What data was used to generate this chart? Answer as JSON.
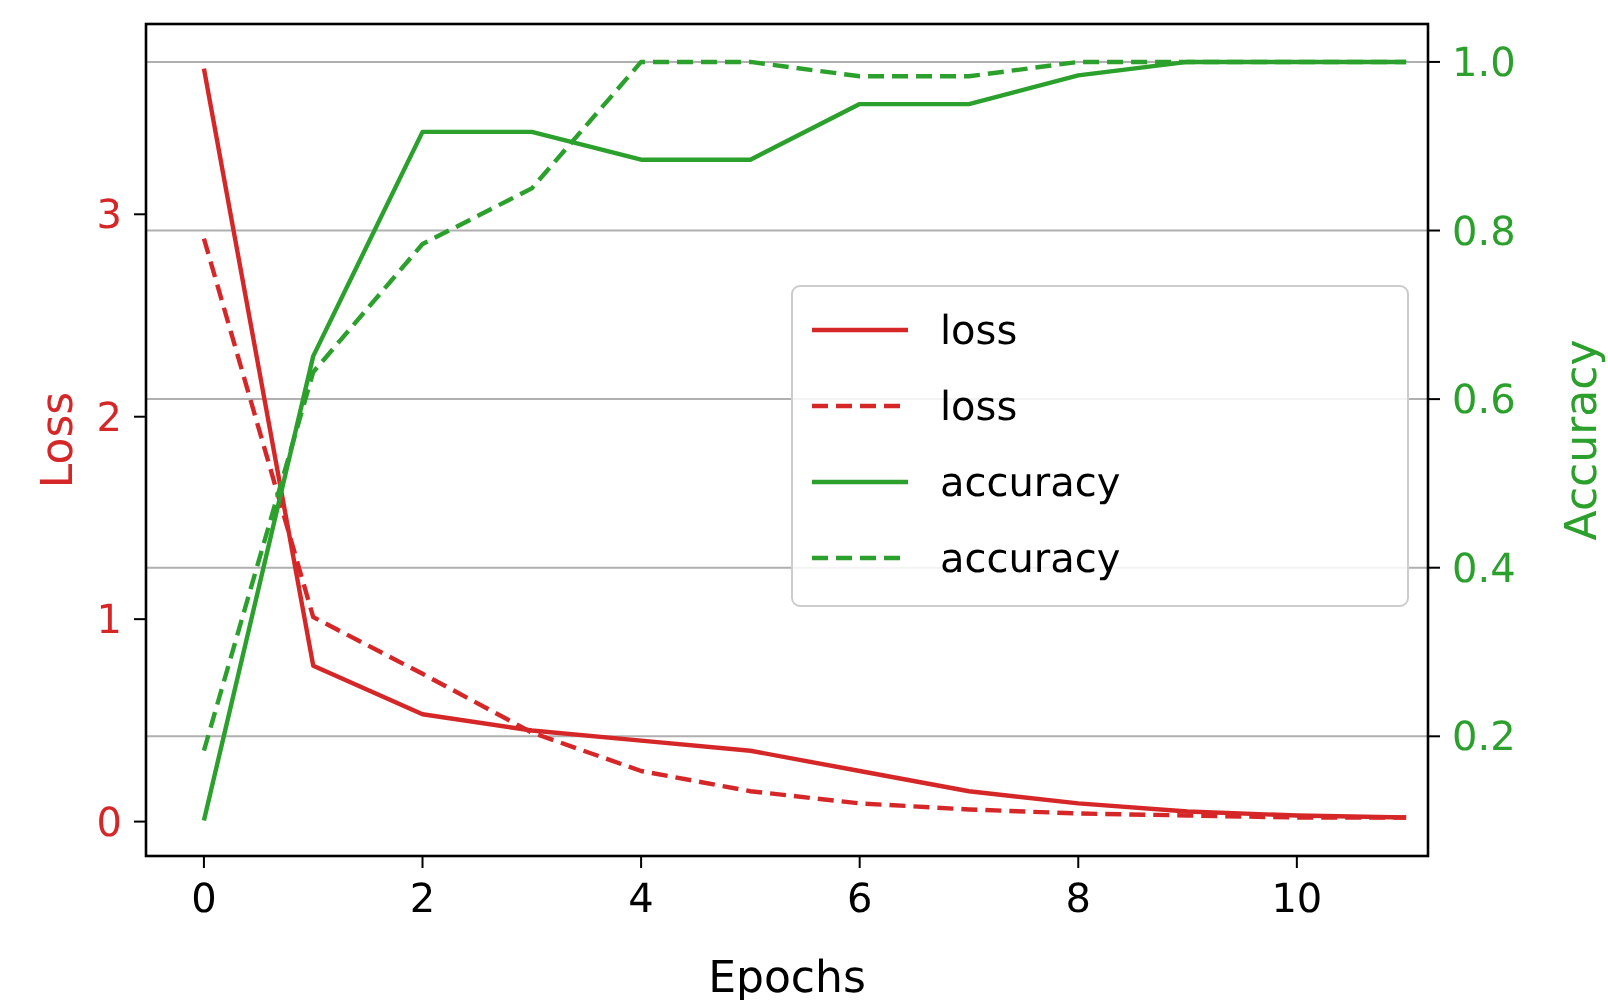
{
  "chart_data": {
    "type": "line",
    "xlabel": "Epochs",
    "ylabel": "Loss",
    "y2label": "Accuracy",
    "x": [
      0,
      1,
      2,
      3,
      4,
      5,
      6,
      7,
      8,
      9,
      10,
      11
    ],
    "xlim": [
      -0.53,
      11.2
    ],
    "xticks": [
      0,
      2,
      4,
      6,
      8,
      10
    ],
    "ylim": [
      -0.17,
      3.94
    ],
    "yticks": [
      0,
      1,
      2,
      3
    ],
    "y2lim": [
      0.058,
      1.045
    ],
    "y2ticks": [
      0.2,
      0.4,
      0.6,
      0.8,
      {
        "value": 1,
        "label": "1.0"
      }
    ],
    "grid": "y",
    "legend": "right",
    "marker": "none",
    "series": [
      {
        "name": "loss",
        "color": "#d62728",
        "line_style": "solid",
        "values": [
          3.72,
          0.77,
          0.53,
          0.45,
          0.4,
          0.35,
          0.25,
          0.15,
          0.09,
          0.05,
          0.03,
          0.02
        ]
      },
      {
        "name": "loss",
        "color": "#d62728",
        "line_style": "dashed",
        "values": [
          2.88,
          1.01,
          0.73,
          0.44,
          0.25,
          0.15,
          0.09,
          0.06,
          0.04,
          0.03,
          0.02,
          0.02
        ]
      },
      {
        "name": "accuracy",
        "color": "#2ca02c",
        "line_style": "solid",
        "axis": "y2",
        "values": [
          0.1,
          0.651,
          0.917,
          0.917,
          0.884,
          0.884,
          0.95,
          0.95,
          0.984,
          1.0,
          1.0,
          1.0
        ]
      },
      {
        "name": "accuracy",
        "color": "#2ca02c",
        "line_style": "dashed",
        "axis": "y2",
        "values": [
          0.183,
          0.632,
          0.784,
          0.85,
          1.0,
          1.0,
          0.983,
          0.983,
          1.0,
          1.0,
          1.0,
          1.0
        ]
      }
    ]
  }
}
